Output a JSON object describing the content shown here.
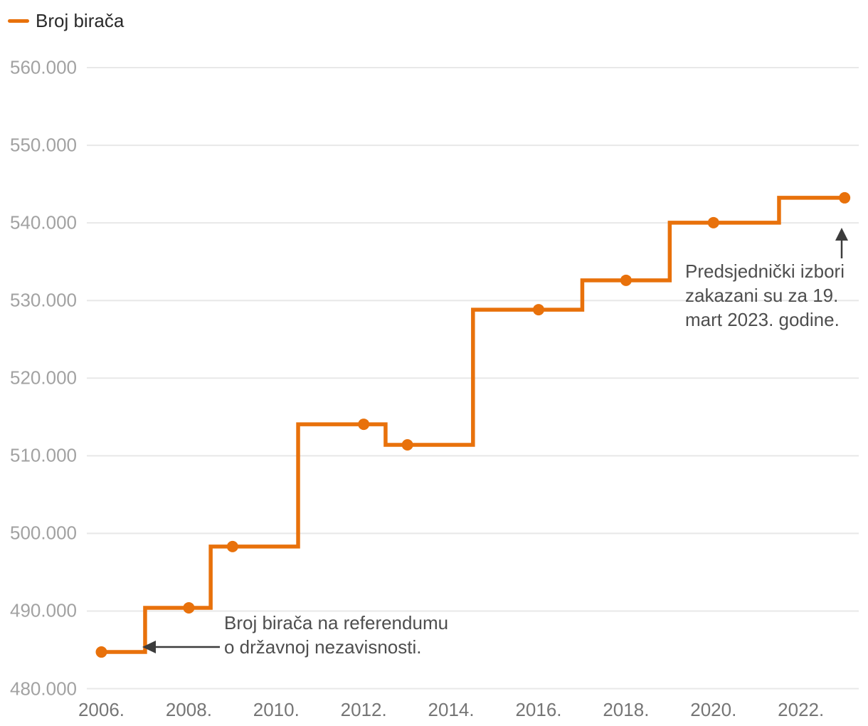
{
  "legend": {
    "label": "Broj birača",
    "color": "#e8710b"
  },
  "annotations": {
    "referendum": {
      "line1": "Broj birača na referendumu",
      "line2": "o državnoj nezavisnosti."
    },
    "elections": {
      "line1": "Predsjednički izbori",
      "line2": "zakazani su za 19.",
      "line3": "mart 2023. godine."
    }
  },
  "chart_data": {
    "type": "line",
    "step": "middle",
    "title": "",
    "xlabel": "",
    "ylabel": "",
    "series": [
      {
        "name": "Broj birača",
        "points": [
          {
            "year": 2006,
            "value": 484718
          },
          {
            "year": 2008,
            "value": 490412
          },
          {
            "year": 2009,
            "value": 498305
          },
          {
            "year": 2012,
            "value": 514055
          },
          {
            "year": 2013,
            "value": 511405
          },
          {
            "year": 2016,
            "value": 528817
          },
          {
            "year": 2018,
            "value": 532599
          },
          {
            "year": 2020,
            "value": 540026
          },
          {
            "year": 2023,
            "value": 543227
          }
        ]
      }
    ],
    "x_ticks": [
      {
        "year": 2006,
        "label": "2006."
      },
      {
        "year": 2008,
        "label": "2008."
      },
      {
        "year": 2010,
        "label": "2010."
      },
      {
        "year": 2012,
        "label": "2012."
      },
      {
        "year": 2014,
        "label": "2014."
      },
      {
        "year": 2016,
        "label": "2016."
      },
      {
        "year": 2018,
        "label": "2018."
      },
      {
        "year": 2020,
        "label": "2020."
      },
      {
        "year": 2022,
        "label": "2022."
      }
    ],
    "y_ticks": [
      {
        "value": 560000,
        "label": "560.000"
      },
      {
        "value": 550000,
        "label": "550.000"
      },
      {
        "value": 540000,
        "label": "540.000"
      },
      {
        "value": 530000,
        "label": "530.000"
      },
      {
        "value": 520000,
        "label": "520.000"
      },
      {
        "value": 510000,
        "label": "510.000"
      },
      {
        "value": 500000,
        "label": "500.000"
      },
      {
        "value": 490000,
        "label": "490.000"
      },
      {
        "value": 480000,
        "label": "480.000"
      }
    ],
    "xlim": [
      2006,
      2023
    ],
    "ylim": [
      480000,
      560000
    ],
    "grid": true,
    "legend_position": "top-left",
    "line_color": "#e8710b",
    "grid_color": "#e8e8e8",
    "arrow_color": "#3c3c3c"
  }
}
